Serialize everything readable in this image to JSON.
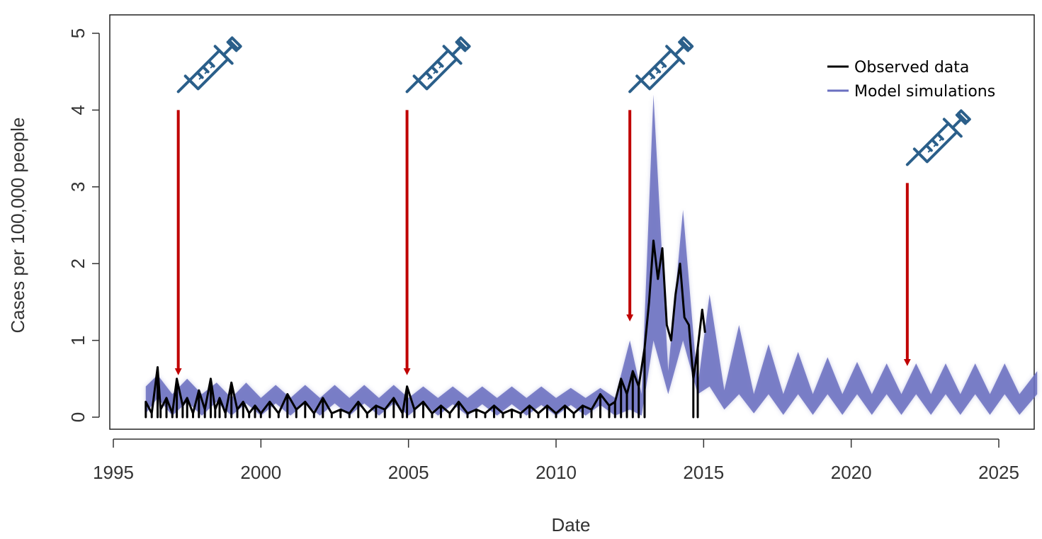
{
  "chart_data": {
    "type": "line",
    "xlabel": "Date",
    "ylabel": "Cases per 100,000 people",
    "xlim": [
      1995,
      2026.3
    ],
    "ylim": [
      0,
      5
    ],
    "x_ticks": [
      1995,
      2000,
      2005,
      2010,
      2015,
      2020,
      2025
    ],
    "y_ticks": [
      0,
      1,
      2,
      3,
      4,
      5
    ],
    "grid": false,
    "legend_position": "top-right",
    "legend": [
      {
        "label": "Observed data",
        "color": "#000000"
      },
      {
        "label": "Model simulations",
        "color": "#6a6fc0"
      }
    ],
    "series": [
      {
        "name": "Observed data",
        "color": "#000000",
        "x": [
          1996.1,
          1996.3,
          1996.5,
          1996.6,
          1996.8,
          1997.0,
          1997.15,
          1997.35,
          1997.5,
          1997.7,
          1997.9,
          1998.1,
          1998.3,
          1998.45,
          1998.6,
          1998.8,
          1999.0,
          1999.2,
          1999.4,
          1999.6,
          1999.8,
          2000.0,
          2000.3,
          2000.6,
          2000.9,
          2001.2,
          2001.5,
          2001.8,
          2002.1,
          2002.4,
          2002.7,
          2003.0,
          2003.3,
          2003.6,
          2003.9,
          2004.2,
          2004.5,
          2004.8,
          2004.95,
          2005.2,
          2005.5,
          2005.8,
          2006.1,
          2006.4,
          2006.7,
          2007.0,
          2007.3,
          2007.6,
          2007.9,
          2008.2,
          2008.5,
          2008.8,
          2009.1,
          2009.4,
          2009.7,
          2010.0,
          2010.3,
          2010.6,
          2010.9,
          2011.2,
          2011.5,
          2011.8,
          2012.0,
          2012.2,
          2012.4,
          2012.6,
          2012.8,
          2013.0,
          2013.15,
          2013.3,
          2013.45,
          2013.6,
          2013.75,
          2013.9,
          2014.05,
          2014.2,
          2014.35,
          2014.5,
          2014.65,
          2014.8,
          2014.95,
          2015.05
        ],
        "values": [
          0.2,
          0.05,
          0.65,
          0.1,
          0.25,
          0.05,
          0.5,
          0.15,
          0.25,
          0.05,
          0.35,
          0.1,
          0.5,
          0.1,
          0.25,
          0.05,
          0.45,
          0.1,
          0.2,
          0.05,
          0.15,
          0.05,
          0.2,
          0.05,
          0.3,
          0.1,
          0.2,
          0.05,
          0.25,
          0.05,
          0.1,
          0.05,
          0.2,
          0.05,
          0.15,
          0.1,
          0.25,
          0.05,
          0.4,
          0.1,
          0.2,
          0.05,
          0.15,
          0.05,
          0.2,
          0.05,
          0.1,
          0.05,
          0.15,
          0.05,
          0.1,
          0.05,
          0.15,
          0.05,
          0.15,
          0.05,
          0.15,
          0.05,
          0.15,
          0.1,
          0.3,
          0.15,
          0.2,
          0.5,
          0.3,
          0.6,
          0.4,
          0.9,
          1.5,
          2.3,
          1.8,
          2.2,
          1.2,
          1.0,
          1.6,
          2.0,
          1.3,
          1.2,
          0.5,
          0.9,
          1.4,
          1.1
        ]
      },
      {
        "name": "Model simulations",
        "color": "#6a6fc0",
        "x": [
          1996.1,
          1996.5,
          1997.0,
          1997.5,
          1998.0,
          1998.5,
          1999.0,
          1999.5,
          2000.0,
          2000.5,
          2001.0,
          2001.5,
          2002.0,
          2002.5,
          2003.0,
          2003.5,
          2004.0,
          2004.5,
          2005.0,
          2005.5,
          2006.0,
          2006.5,
          2007.0,
          2007.5,
          2008.0,
          2008.5,
          2009.0,
          2009.5,
          2010.0,
          2010.5,
          2011.0,
          2011.5,
          2012.0,
          2012.5,
          2012.9,
          2013.3,
          2013.8,
          2014.3,
          2014.8,
          2015.2,
          2015.7,
          2016.2,
          2016.7,
          2017.2,
          2017.7,
          2018.2,
          2018.7,
          2019.2,
          2019.7,
          2020.2,
          2020.7,
          2021.2,
          2021.7,
          2022.2,
          2022.7,
          2023.2,
          2023.7,
          2024.2,
          2024.7,
          2025.2,
          2025.7,
          2026.3
        ],
        "lower": [
          0.05,
          0.25,
          0.02,
          0.2,
          0.02,
          0.2,
          0.02,
          0.18,
          0.02,
          0.18,
          0.02,
          0.18,
          0.02,
          0.18,
          0.02,
          0.18,
          0.02,
          0.18,
          0.02,
          0.18,
          0.02,
          0.17,
          0.02,
          0.17,
          0.02,
          0.17,
          0.02,
          0.16,
          0.02,
          0.16,
          0.02,
          0.16,
          0.02,
          0.1,
          0.02,
          1.0,
          0.3,
          1.0,
          0.3,
          0.4,
          0.1,
          0.3,
          0.05,
          0.3,
          0.03,
          0.3,
          0.03,
          0.3,
          0.03,
          0.3,
          0.03,
          0.3,
          0.03,
          0.3,
          0.03,
          0.3,
          0.03,
          0.3,
          0.03,
          0.3,
          0.03,
          0.3
        ],
        "upper": [
          0.4,
          0.55,
          0.3,
          0.5,
          0.3,
          0.45,
          0.25,
          0.45,
          0.25,
          0.42,
          0.25,
          0.42,
          0.25,
          0.42,
          0.25,
          0.42,
          0.25,
          0.42,
          0.25,
          0.4,
          0.25,
          0.4,
          0.25,
          0.4,
          0.25,
          0.4,
          0.25,
          0.4,
          0.25,
          0.38,
          0.25,
          0.38,
          0.25,
          1.0,
          0.3,
          4.2,
          0.6,
          2.7,
          0.4,
          1.6,
          0.35,
          1.2,
          0.3,
          0.95,
          0.3,
          0.85,
          0.3,
          0.78,
          0.3,
          0.72,
          0.3,
          0.7,
          0.3,
          0.7,
          0.3,
          0.7,
          0.3,
          0.7,
          0.3,
          0.7,
          0.3,
          0.6
        ]
      }
    ],
    "annotations": [
      {
        "type": "vaccination-campaign",
        "x": 1997.2,
        "arrow_top": 4.0,
        "arrow_bottom": 0.5
      },
      {
        "type": "vaccination-campaign",
        "x": 2004.95,
        "arrow_top": 4.0,
        "arrow_bottom": 0.5
      },
      {
        "type": "vaccination-campaign",
        "x": 2012.5,
        "arrow_top": 4.0,
        "arrow_bottom": 1.2
      },
      {
        "type": "vaccination-campaign",
        "x": 2021.9,
        "arrow_top": 3.05,
        "arrow_bottom": 0.62
      }
    ],
    "annotation_icon": "syringe-icon",
    "annotation_arrow_color": "#c00000",
    "syringe_color": "#2b5f8a"
  }
}
